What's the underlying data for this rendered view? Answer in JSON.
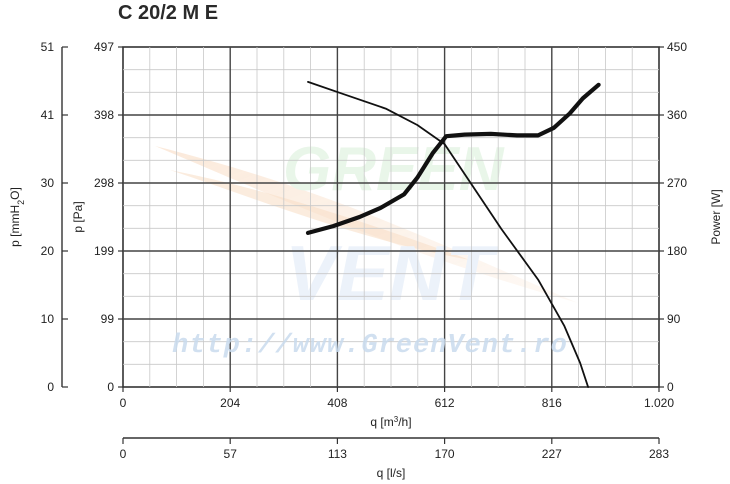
{
  "chart_data": {
    "type": "line",
    "title": "C 20/2 M E",
    "watermark": "http://www.GreenVent.ro",
    "x_primary": {
      "label": "q [m³/h]",
      "ticks": [
        "0",
        "204",
        "408",
        "612",
        "816",
        "1.020"
      ],
      "range": [
        0,
        1020
      ]
    },
    "x_secondary": {
      "label": "q [l/s]",
      "ticks": [
        "0",
        "57",
        "113",
        "170",
        "227",
        "283"
      ],
      "range": [
        0,
        283
      ]
    },
    "y_left_outer": {
      "label": "p [mmH2O]",
      "ticks": [
        "0",
        "10",
        "20",
        "30",
        "41",
        "51"
      ]
    },
    "y_left_inner": {
      "label": "p [Pa]",
      "ticks": [
        "0",
        "99",
        "199",
        "298",
        "398",
        "497"
      ],
      "range": [
        0,
        497
      ]
    },
    "y_right": {
      "label": "Power [W]",
      "ticks": [
        "0",
        "90",
        "180",
        "270",
        "360",
        "450"
      ],
      "range": [
        0,
        450
      ]
    },
    "grid": true,
    "series": [
      {
        "axis": "pressure",
        "color": "#111111",
        "points": [
          [
            352,
            446
          ],
          [
            420,
            428
          ],
          [
            500,
            407
          ],
          [
            560,
            383
          ],
          [
            612,
            355
          ],
          [
            660,
            300
          ],
          [
            720,
            231
          ],
          [
            790,
            157
          ],
          [
            840,
            89
          ],
          [
            870,
            35
          ],
          [
            885,
            0
          ]
        ]
      },
      {
        "axis": "power",
        "color": "#111111",
        "points": [
          [
            352,
            204
          ],
          [
            400,
            213
          ],
          [
            450,
            225
          ],
          [
            490,
            237
          ],
          [
            535,
            255
          ],
          [
            560,
            277
          ],
          [
            590,
            310
          ],
          [
            615,
            332
          ],
          [
            650,
            334
          ],
          [
            700,
            335
          ],
          [
            750,
            333
          ],
          [
            790,
            333
          ],
          [
            820,
            343
          ],
          [
            850,
            362
          ],
          [
            875,
            382
          ],
          [
            905,
            400
          ]
        ]
      }
    ]
  }
}
